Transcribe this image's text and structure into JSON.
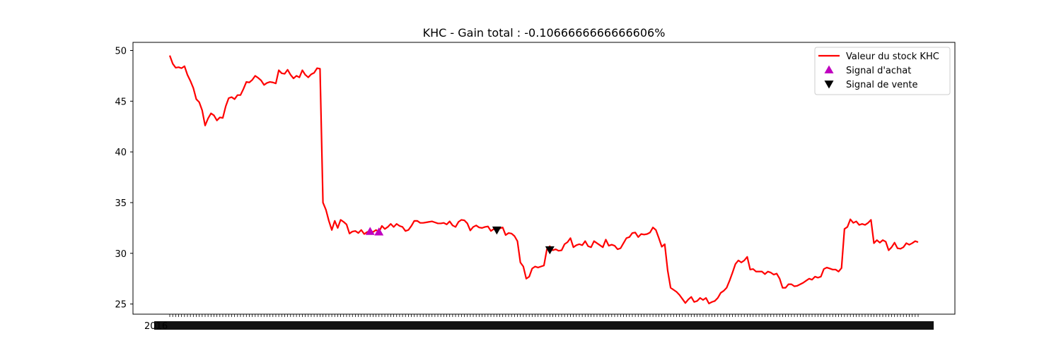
{
  "chart_data": {
    "type": "line",
    "title": "KHC - Gain total : -0.1066666666666606%",
    "xlabel": "",
    "ylabel": "",
    "ylim": [
      24,
      50.8
    ],
    "y_ticks": [
      25,
      30,
      35,
      40,
      45,
      50
    ],
    "grid": false,
    "legend_position": "top-right",
    "series": [
      {
        "name": "Valeur du stock KHC",
        "color": "#ff0000",
        "values": [
          49.5,
          48.7,
          48.3,
          48.35,
          48.25,
          48.45,
          47.6,
          47.0,
          46.3,
          45.2,
          44.9,
          44.1,
          42.6,
          43.3,
          43.8,
          43.6,
          43.1,
          43.4,
          43.35,
          44.5,
          45.3,
          45.4,
          45.2,
          45.6,
          45.6,
          46.2,
          46.9,
          46.85,
          47.1,
          47.5,
          47.3,
          47.05,
          46.6,
          46.8,
          46.9,
          46.85,
          46.75,
          48.05,
          47.75,
          47.7,
          48.1,
          47.6,
          47.25,
          47.5,
          47.35,
          48.05,
          47.6,
          47.35,
          47.65,
          47.8,
          48.25,
          48.2,
          35.0,
          34.3,
          33.2,
          32.3,
          33.2,
          32.5,
          33.3,
          33.1,
          32.85,
          31.95,
          32.15,
          32.2,
          32.0,
          32.3,
          31.9,
          32.1,
          32.2,
          32.1,
          32.3,
          32.1,
          32.7,
          32.4,
          32.6,
          32.9,
          32.6,
          32.9,
          32.7,
          32.6,
          32.2,
          32.3,
          32.7,
          33.2,
          33.2,
          33.0,
          33.0,
          33.05,
          33.1,
          33.15,
          33.05,
          32.95,
          32.95,
          33.0,
          32.85,
          33.15,
          32.75,
          32.6,
          33.1,
          33.3,
          33.25,
          32.95,
          32.25,
          32.6,
          32.75,
          32.55,
          32.5,
          32.6,
          32.65,
          32.2,
          32.4,
          32.5,
          32.45,
          32.55,
          31.8,
          32.0,
          31.95,
          31.7,
          31.2,
          29.1,
          28.7,
          27.5,
          27.7,
          28.5,
          28.7,
          28.6,
          28.7,
          28.8,
          30.4,
          30.7,
          30.3,
          30.4,
          30.25,
          30.3,
          30.9,
          31.1,
          31.5,
          30.6,
          30.8,
          30.9,
          30.8,
          31.2,
          30.7,
          30.6,
          31.2,
          31.0,
          30.8,
          30.6,
          31.35,
          30.75,
          30.85,
          30.75,
          30.4,
          30.5,
          31.0,
          31.5,
          31.6,
          32.0,
          32.05,
          31.6,
          31.9,
          31.85,
          31.9,
          32.05,
          32.55,
          32.3,
          31.5,
          30.65,
          30.9,
          28.3,
          26.6,
          26.4,
          26.2,
          25.9,
          25.5,
          25.1,
          25.45,
          25.7,
          25.2,
          25.3,
          25.6,
          25.4,
          25.6,
          25.05,
          25.2,
          25.3,
          25.6,
          26.1,
          26.3,
          26.6,
          27.3,
          28.1,
          28.95,
          29.3,
          29.1,
          29.3,
          29.65,
          28.4,
          28.45,
          28.2,
          28.2,
          28.2,
          27.95,
          28.2,
          28.1,
          27.9,
          28.0,
          27.5,
          26.6,
          26.6,
          26.95,
          26.95,
          26.75,
          26.8,
          26.95,
          27.1,
          27.3,
          27.5,
          27.4,
          27.7,
          27.6,
          27.7,
          28.45,
          28.6,
          28.5,
          28.4,
          28.4,
          28.2,
          28.55,
          32.4,
          32.6,
          33.35,
          33.0,
          33.15,
          32.8,
          32.9,
          32.8,
          33.0,
          33.3,
          31.0,
          31.3,
          31.05,
          31.3,
          31.15,
          30.3,
          30.6,
          31.05,
          30.5,
          30.45,
          30.6,
          31.0,
          30.85,
          31.0,
          31.2,
          31.1
        ]
      },
      {
        "name": "Signal d'achat",
        "color": "#bf00bf",
        "marker": "triangle-up",
        "points": [
          [
            68,
            32.15
          ],
          [
            71,
            32.1
          ]
        ]
      },
      {
        "name": "Signal de vente",
        "color": "#000000",
        "marker": "triangle-down",
        "points": [
          [
            111,
            32.3
          ],
          [
            129,
            30.35
          ]
        ]
      }
    ],
    "x_tick_labels_text": "2016-..."
  }
}
